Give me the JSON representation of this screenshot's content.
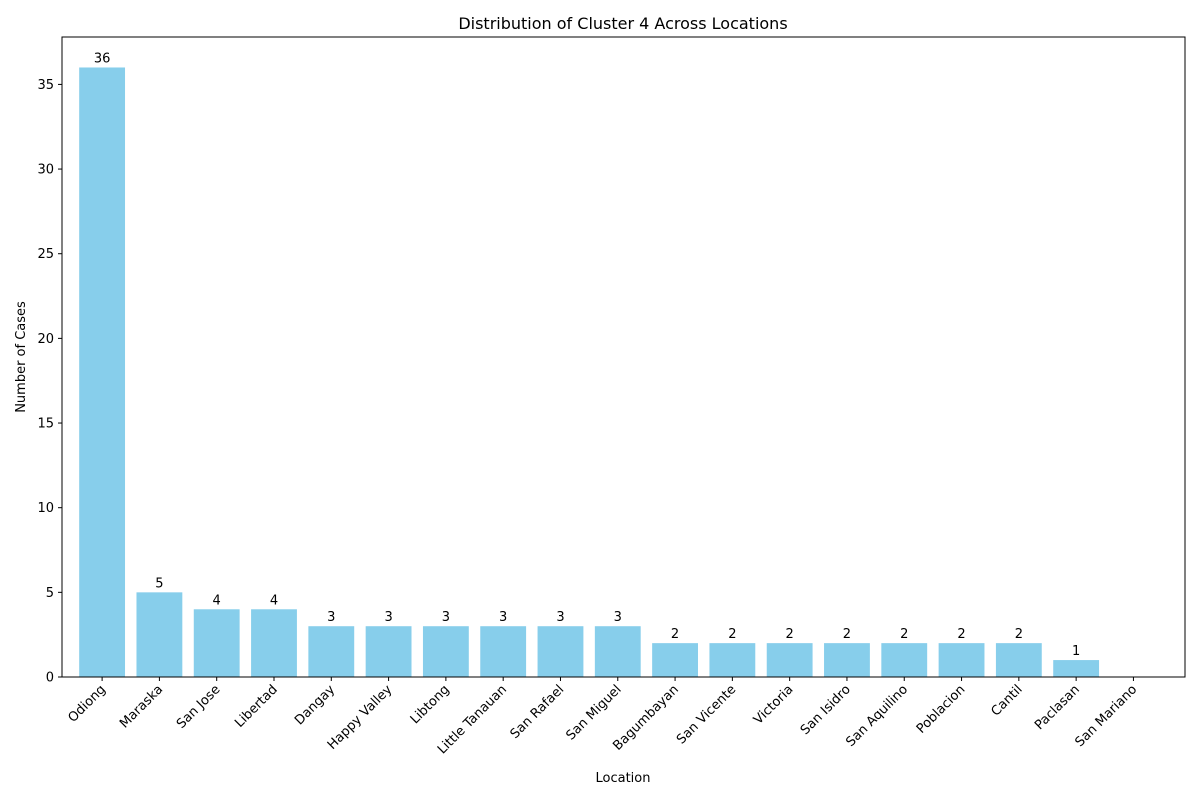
{
  "chart_data": {
    "type": "bar",
    "title": "Distribution of Cluster 4 Across Locations",
    "xlabel": "Location",
    "ylabel": "Number of Cases",
    "categories": [
      "Odiong",
      "Maraska",
      "San Jose",
      "Libertad",
      "Dangay",
      "Happy Valley",
      "Libtong",
      "Little Tanauan",
      "San Rafael",
      "San Miguel",
      "Bagumbayan",
      "San Vicente",
      "Victoria",
      "San Isidro",
      "San Aquilino",
      "Poblacion",
      "Cantil",
      "Paclasan",
      "San Mariano"
    ],
    "values": [
      36,
      5,
      4,
      4,
      3,
      3,
      3,
      3,
      3,
      3,
      2,
      2,
      2,
      2,
      2,
      2,
      2,
      1,
      0
    ],
    "value_labels": [
      "36",
      "5",
      "4",
      "4",
      "3",
      "3",
      "3",
      "3",
      "3",
      "3",
      "2",
      "2",
      "2",
      "2",
      "2",
      "2",
      "2",
      "1",
      ""
    ],
    "yticks": [
      0,
      5,
      10,
      15,
      20,
      25,
      30,
      35
    ],
    "ylim": [
      0,
      37.8
    ],
    "grid": false,
    "bar_color": "#87CEEB"
  }
}
